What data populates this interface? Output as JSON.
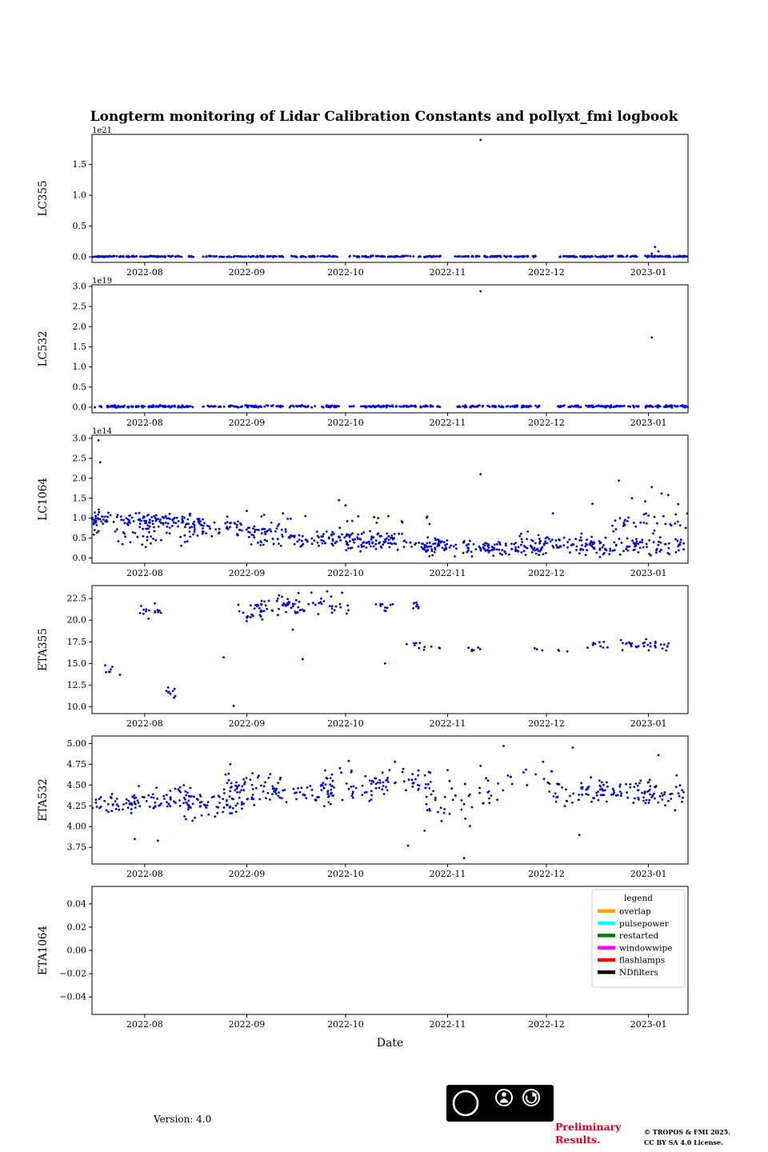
{
  "title": "Longterm monitoring of Lidar Calibration Constants and pollyxt_fmi logbook",
  "xlabel": "Date",
  "colors": {
    "points": "#0000dd",
    "preliminary_red": "#e8001c",
    "frame": "#000000",
    "legend_border": "#cccccc"
  },
  "footer": {
    "version": "Version: 4.0",
    "preliminary_line1": "Preliminary",
    "preliminary_line2": "Results.",
    "copyright_line1": "© TROPOS & FMI 2025.",
    "copyright_line2": "CC BY SA 4.0 License.",
    "cc_badge": {
      "cc": "CC",
      "by": "BY",
      "sa": "SA"
    }
  },
  "x_axis": {
    "domain": [
      0,
      181
    ],
    "ticks": [
      16,
      47,
      77,
      108,
      138,
      169
    ],
    "tick_labels": [
      "2022-08",
      "2022-09",
      "2022-10",
      "2022-11",
      "2022-12",
      "2023-01"
    ]
  },
  "legend": {
    "title": "legend",
    "entries": [
      {
        "label": "overlap",
        "color": "#ffa500"
      },
      {
        "label": "pulsepower",
        "color": "#00ffff"
      },
      {
        "label": "restarted",
        "color": "#008000"
      },
      {
        "label": "windowwipe",
        "color": "#ff00ff"
      },
      {
        "label": "flashlamps",
        "color": "#ff0000"
      },
      {
        "label": "NDfilters",
        "color": "#000000"
      }
    ]
  },
  "chart_data": [
    {
      "type": "scatter",
      "ylabel": "LC355",
      "offset_label": "1e21",
      "ylim": [
        -0.09,
        1.99
      ],
      "yticks": [
        0.0,
        0.5,
        1.0,
        1.5
      ],
      "ytick_labels": [
        "0.0",
        "0.5",
        "1.0",
        "1.5"
      ],
      "clusters": [
        {
          "seed": 101,
          "n": 110,
          "x": [
            0,
            31
          ],
          "y": [
            -0.006,
            0.02
          ]
        },
        {
          "seed": 102,
          "n": 70,
          "x": [
            33,
            58
          ],
          "y": [
            -0.006,
            0.02
          ]
        },
        {
          "seed": 103,
          "n": 45,
          "x": [
            60,
            75
          ],
          "y": [
            -0.006,
            0.02
          ]
        },
        {
          "seed": 104,
          "n": 85,
          "x": [
            78,
            106
          ],
          "y": [
            -0.006,
            0.02
          ]
        },
        {
          "seed": 105,
          "n": 75,
          "x": [
            110,
            136
          ],
          "y": [
            -0.006,
            0.02
          ]
        },
        {
          "seed": 106,
          "n": 85,
          "x": [
            141,
            166
          ],
          "y": [
            -0.006,
            0.02
          ]
        },
        {
          "seed": 107,
          "n": 55,
          "x": [
            168,
            181
          ],
          "y": [
            -0.006,
            0.02
          ]
        }
      ],
      "outliers": [
        [
          118,
          1.9
        ],
        [
          171,
          0.16
        ],
        [
          172,
          0.09
        ],
        [
          170,
          0.05
        ]
      ]
    },
    {
      "type": "scatter",
      "ylabel": "LC532",
      "offset_label": "1e19",
      "ylim": [
        -0.14,
        3.04
      ],
      "yticks": [
        0.0,
        0.5,
        1.0,
        1.5,
        2.0,
        2.5,
        3.0
      ],
      "ytick_labels": [
        "0.0",
        "0.5",
        "1.0",
        "1.5",
        "2.0",
        "2.5",
        "3.0"
      ],
      "clusters": [
        {
          "seed": 201,
          "n": 110,
          "x": [
            0,
            31
          ],
          "y": [
            -0.012,
            0.05
          ]
        },
        {
          "seed": 202,
          "n": 70,
          "x": [
            33,
            58
          ],
          "y": [
            -0.012,
            0.05
          ]
        },
        {
          "seed": 203,
          "n": 45,
          "x": [
            60,
            75
          ],
          "y": [
            -0.012,
            0.05
          ]
        },
        {
          "seed": 204,
          "n": 85,
          "x": [
            78,
            106
          ],
          "y": [
            -0.012,
            0.05
          ]
        },
        {
          "seed": 205,
          "n": 75,
          "x": [
            110,
            136
          ],
          "y": [
            -0.012,
            0.05
          ]
        },
        {
          "seed": 206,
          "n": 85,
          "x": [
            141,
            166
          ],
          "y": [
            -0.012,
            0.05
          ]
        },
        {
          "seed": 207,
          "n": 55,
          "x": [
            168,
            181
          ],
          "y": [
            -0.012,
            0.05
          ]
        }
      ],
      "outliers": [
        [
          118,
          2.88
        ],
        [
          170,
          1.73
        ]
      ]
    },
    {
      "type": "scatter",
      "ylabel": "LC1064",
      "offset_label": "1e14",
      "ylim": [
        -0.13,
        3.08
      ],
      "yticks": [
        0.0,
        0.5,
        1.0,
        1.5,
        2.0,
        2.5,
        3.0
      ],
      "ytick_labels": [
        "0.0",
        "0.5",
        "1.0",
        "1.5",
        "2.0",
        "2.5",
        "3.0"
      ],
      "clusters": [
        {
          "seed": 301,
          "n": 20,
          "x": [
            0,
            5
          ],
          "y": [
            0.55,
            1.35
          ]
        },
        {
          "seed": 302,
          "n": 80,
          "x": [
            0,
            30
          ],
          "y": [
            0.8,
            1.15
          ]
        },
        {
          "seed": 303,
          "n": 35,
          "x": [
            3,
            30
          ],
          "y": [
            0.25,
            0.8
          ]
        },
        {
          "seed": 304,
          "n": 60,
          "x": [
            14,
            46
          ],
          "y": [
            0.7,
            1.05
          ]
        },
        {
          "seed": 305,
          "n": 50,
          "x": [
            30,
            58
          ],
          "y": [
            0.5,
            0.9
          ]
        },
        {
          "seed": 306,
          "n": 55,
          "x": [
            45,
            76
          ],
          "y": [
            0.25,
            0.8
          ]
        },
        {
          "seed": 307,
          "n": 65,
          "x": [
            60,
            92
          ],
          "y": [
            0.2,
            0.7
          ]
        },
        {
          "seed": 308,
          "n": 80,
          "x": [
            76,
            108
          ],
          "y": [
            0.1,
            0.65
          ]
        },
        {
          "seed": 309,
          "n": 75,
          "x": [
            100,
            126
          ],
          "y": [
            0.02,
            0.5
          ]
        },
        {
          "seed": 310,
          "n": 50,
          "x": [
            118,
            138
          ],
          "y": [
            0.02,
            0.45
          ]
        },
        {
          "seed": 311,
          "n": 80,
          "x": [
            128,
            156
          ],
          "y": [
            0.05,
            0.7
          ]
        },
        {
          "seed": 312,
          "n": 95,
          "x": [
            148,
            181
          ],
          "y": [
            0.02,
            0.6
          ]
        },
        {
          "seed": 313,
          "n": 35,
          "x": [
            158,
            181
          ],
          "y": [
            0.55,
            1.2
          ]
        },
        {
          "seed": 314,
          "n": 20,
          "x": [
            30,
            108
          ],
          "y": [
            0.8,
            1.1
          ]
        }
      ],
      "outliers": [
        [
          2,
          2.95
        ],
        [
          2.5,
          2.4
        ],
        [
          118,
          2.1
        ],
        [
          160,
          1.94
        ],
        [
          170,
          1.78
        ],
        [
          173,
          1.62
        ],
        [
          164,
          1.5
        ],
        [
          75,
          1.45
        ],
        [
          77,
          1.32
        ],
        [
          152,
          1.36
        ],
        [
          47,
          1.18
        ],
        [
          140,
          1.12
        ],
        [
          168,
          1.42
        ],
        [
          175,
          1.58
        ],
        [
          178,
          1.35
        ],
        [
          58,
          1.12
        ],
        [
          90,
          1.05
        ]
      ]
    },
    {
      "type": "scatter",
      "ylabel": "ETA355",
      "offset_label": "",
      "ylim": [
        9.2,
        24.0
      ],
      "yticks": [
        10.0,
        12.5,
        15.0,
        17.5,
        20.0,
        22.5
      ],
      "ytick_labels": [
        "10.0",
        "12.5",
        "15.0",
        "17.5",
        "20.0",
        "22.5"
      ],
      "clusters": [
        {
          "seed": 401,
          "n": 8,
          "x": [
            4,
            9
          ],
          "y": [
            12.4,
            15.6
          ]
        },
        {
          "seed": 402,
          "n": 12,
          "x": [
            14,
            20
          ],
          "y": [
            19.8,
            22.3
          ]
        },
        {
          "seed": 403,
          "n": 4,
          "x": [
            20,
            23
          ],
          "y": [
            20.7,
            21.4
          ]
        },
        {
          "seed": 404,
          "n": 9,
          "x": [
            22,
            26
          ],
          "y": [
            10.1,
            13.2
          ]
        },
        {
          "seed": 405,
          "n": 22,
          "x": [
            44,
            52
          ],
          "y": [
            19.4,
            22.4
          ]
        },
        {
          "seed": 406,
          "n": 30,
          "x": [
            48,
            62
          ],
          "y": [
            20.3,
            23.2
          ]
        },
        {
          "seed": 407,
          "n": 45,
          "x": [
            58,
            78
          ],
          "y": [
            20.0,
            23.4
          ]
        },
        {
          "seed": 408,
          "n": 10,
          "x": [
            86,
            92
          ],
          "y": [
            21.0,
            22.2
          ]
        },
        {
          "seed": 409,
          "n": 8,
          "x": [
            95,
            101
          ],
          "y": [
            16.4,
            17.6
          ]
        },
        {
          "seed": 410,
          "n": 8,
          "x": [
            96,
            100
          ],
          "y": [
            21.2,
            22.2
          ]
        },
        {
          "seed": 411,
          "n": 3,
          "x": [
            103,
            106
          ],
          "y": [
            16.5,
            17.0
          ]
        },
        {
          "seed": 412,
          "n": 6,
          "x": [
            114,
            119
          ],
          "y": [
            16.4,
            17.1
          ]
        },
        {
          "seed": 413,
          "n": 3,
          "x": [
            133,
            137
          ],
          "y": [
            16.5,
            17.0
          ]
        },
        {
          "seed": 414,
          "n": 3,
          "x": [
            141,
            145
          ],
          "y": [
            16.3,
            16.8
          ]
        },
        {
          "seed": 415,
          "n": 9,
          "x": [
            149,
            157
          ],
          "y": [
            16.4,
            17.6
          ]
        },
        {
          "seed": 416,
          "n": 32,
          "x": [
            159,
            176
          ],
          "y": [
            16.3,
            18.1
          ]
        }
      ],
      "outliers": [
        [
          43,
          10.1
        ],
        [
          64,
          15.5
        ],
        [
          89,
          15.0
        ],
        [
          40,
          15.7
        ],
        [
          61,
          18.9
        ]
      ]
    },
    {
      "type": "scatter",
      "ylabel": "ETA532",
      "offset_label": "",
      "ylim": [
        3.55,
        5.09
      ],
      "yticks": [
        3.75,
        4.0,
        4.25,
        4.5,
        4.75,
        5.0
      ],
      "ytick_labels": [
        "3.75",
        "4.00",
        "4.25",
        "4.50",
        "4.75",
        "5.00"
      ],
      "clusters": [
        {
          "seed": 501,
          "n": 45,
          "x": [
            0,
            14
          ],
          "y": [
            4.12,
            4.42
          ]
        },
        {
          "seed": 502,
          "n": 55,
          "x": [
            12,
            30
          ],
          "y": [
            4.15,
            4.5
          ]
        },
        {
          "seed": 503,
          "n": 55,
          "x": [
            28,
            44
          ],
          "y": [
            4.05,
            4.45
          ]
        },
        {
          "seed": 504,
          "n": 65,
          "x": [
            40,
            58
          ],
          "y": [
            4.2,
            4.68
          ]
        },
        {
          "seed": 505,
          "n": 55,
          "x": [
            54,
            74
          ],
          "y": [
            4.22,
            4.6
          ]
        },
        {
          "seed": 506,
          "n": 50,
          "x": [
            70,
            90
          ],
          "y": [
            4.28,
            4.72
          ]
        },
        {
          "seed": 507,
          "n": 38,
          "x": [
            86,
            104
          ],
          "y": [
            4.3,
            4.76
          ]
        },
        {
          "seed": 508,
          "n": 26,
          "x": [
            100,
            116
          ],
          "y": [
            3.98,
            4.62
          ]
        },
        {
          "seed": 509,
          "n": 20,
          "x": [
            112,
            126
          ],
          "y": [
            4.18,
            4.62
          ]
        },
        {
          "seed": 510,
          "n": 12,
          "x": [
            126,
            140
          ],
          "y": [
            4.45,
            4.8
          ]
        },
        {
          "seed": 511,
          "n": 40,
          "x": [
            138,
            156
          ],
          "y": [
            4.22,
            4.62
          ]
        },
        {
          "seed": 512,
          "n": 45,
          "x": [
            152,
            170
          ],
          "y": [
            4.24,
            4.58
          ]
        },
        {
          "seed": 513,
          "n": 45,
          "x": [
            164,
            181
          ],
          "y": [
            4.18,
            4.62
          ]
        }
      ],
      "outliers": [
        [
          13,
          3.85
        ],
        [
          20,
          3.83
        ],
        [
          96,
          3.77
        ],
        [
          101,
          3.95
        ],
        [
          113,
          3.62
        ],
        [
          125,
          4.97
        ],
        [
          146,
          4.95
        ],
        [
          148,
          3.9
        ],
        [
          172,
          4.86
        ],
        [
          42,
          4.75
        ],
        [
          78,
          4.79
        ],
        [
          118,
          4.73
        ],
        [
          92,
          4.78
        ],
        [
          108,
          4.68
        ],
        [
          137,
          4.78
        ]
      ]
    },
    {
      "type": "scatter",
      "ylabel": "ETA1064",
      "offset_label": "",
      "ylim": [
        -0.055,
        0.055
      ],
      "yticks": [
        -0.04,
        -0.02,
        0.0,
        0.02,
        0.04
      ],
      "ytick_labels": [
        "−0.04",
        "−0.02",
        "0.00",
        "0.02",
        "0.04"
      ],
      "clusters": [],
      "outliers": [],
      "show_legend": true
    }
  ]
}
